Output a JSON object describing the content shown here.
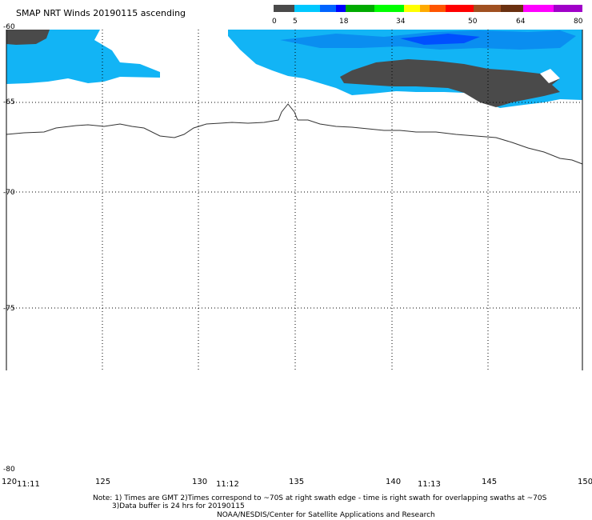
{
  "title": "SMAP NRT Winds 20190115 ascending",
  "colorbar": {
    "labels": [
      "0",
      "5",
      "18",
      "34",
      "50",
      "64",
      "80"
    ],
    "colors": [
      "#4a4a4a",
      "#00c8ff",
      "#0064ff",
      "#0000ff",
      "#00aa00",
      "#00ff00",
      "#ffff00",
      "#ffaa00",
      "#ff5500",
      "#ff0000",
      "#a05020",
      "#6a3010",
      "#ff00ff",
      "#a000c8"
    ]
  },
  "lat_labels": [
    "-60",
    "-65",
    "-70",
    "-75",
    "-80"
  ],
  "lon_labels": [
    "120",
    "125",
    "130",
    "135",
    "140",
    "145",
    "150"
  ],
  "time_labels": [
    "11:11",
    "11:12",
    "11:13"
  ],
  "notes": {
    "line1": "Note: 1) Times are GMT 2)Times correspond to ~70S at right swath edge - time is right swath for overlapping swaths at ~70S",
    "line2": "3)Data buffer is 24 hrs for 20190115",
    "line3": "NOAA/NESDIS/Center for Satellite Applications and Research"
  },
  "colors": {
    "land_gray": "#4a4a4a",
    "wind_light": "#12b4f5",
    "wind_mid": "#0a8ef0",
    "wind_dark": "#0050ff",
    "coast": "#333333"
  }
}
